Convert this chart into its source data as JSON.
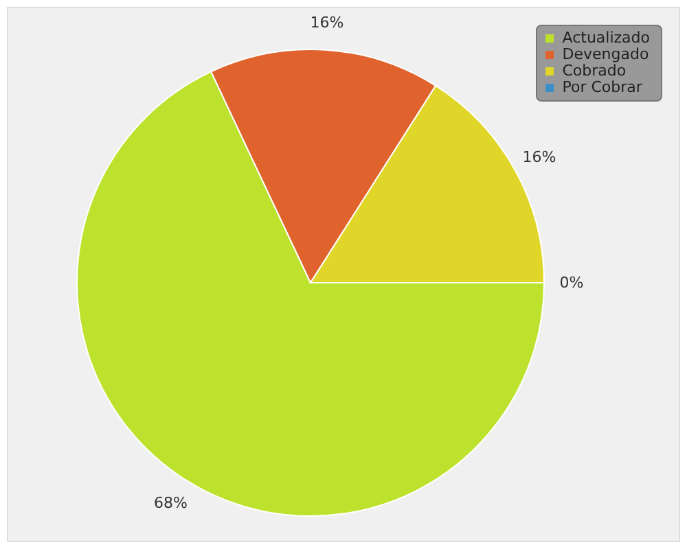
{
  "chart_data": {
    "type": "pie",
    "categories": [
      "Actualizado",
      "Devengado",
      "Cobrado",
      "Por Cobrar"
    ],
    "values": [
      68,
      16,
      16,
      0
    ],
    "colors": [
      "#bde22e",
      "#e0632e",
      "#e0d62a",
      "#3a8fc8"
    ],
    "value_labels": [
      "68%",
      "16%",
      "16%",
      "0%"
    ],
    "legend": "top right"
  }
}
